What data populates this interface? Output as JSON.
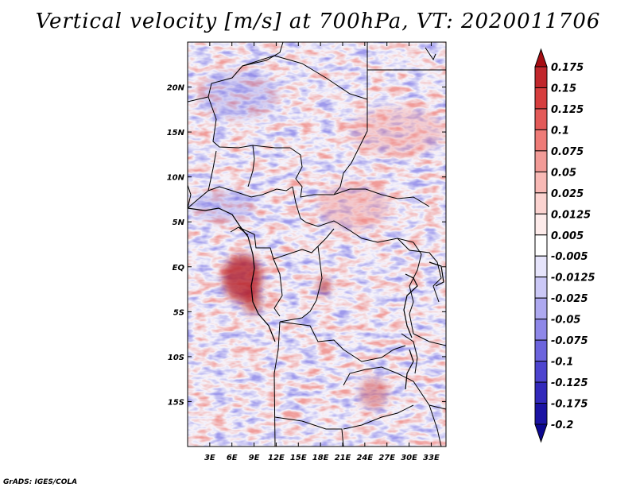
{
  "title": "Vertical velocity [m/s] at 700hPa, VT: 2020011706",
  "credit": "GrADS: IGES/COLA",
  "map": {
    "variable": "vertical velocity",
    "level": "700hPa",
    "valid_time": "2020011706",
    "lon_range": [
      0,
      35
    ],
    "lat_range": [
      -20,
      25
    ],
    "lat_labels": [
      "20N",
      "15N",
      "10N",
      "5N",
      "EQ",
      "5S",
      "10S",
      "15S"
    ],
    "lat_values": [
      20,
      15,
      10,
      5,
      0,
      -5,
      -10,
      -15
    ],
    "lon_labels": [
      "3E",
      "6E",
      "9E",
      "12E",
      "15E",
      "18E",
      "21E",
      "24E",
      "27E",
      "30E",
      "33E"
    ],
    "lon_values": [
      3,
      6,
      9,
      12,
      15,
      18,
      21,
      24,
      27,
      30,
      33
    ]
  },
  "colorbar": {
    "levels": [
      "0.175",
      "0.15",
      "0.125",
      "0.1",
      "0.075",
      "0.05",
      "0.025",
      "0.0125",
      "0.005",
      "-0.005",
      "-0.0125",
      "-0.025",
      "-0.05",
      "-0.075",
      "-0.1",
      "-0.125",
      "-0.175",
      "-0.2"
    ],
    "colors": [
      "#a50d12",
      "#c1272c",
      "#d63e3e",
      "#e35a58",
      "#ee7b77",
      "#f29b97",
      "#f8b9b5",
      "#fbd3d0",
      "#fdebea",
      "#ffffff",
      "#e6e4fb",
      "#cbc8f6",
      "#aea9f0",
      "#8e87e8",
      "#6c64dd",
      "#4d44cf",
      "#3229bb",
      "#1b13a3",
      "#0c0790"
    ]
  }
}
